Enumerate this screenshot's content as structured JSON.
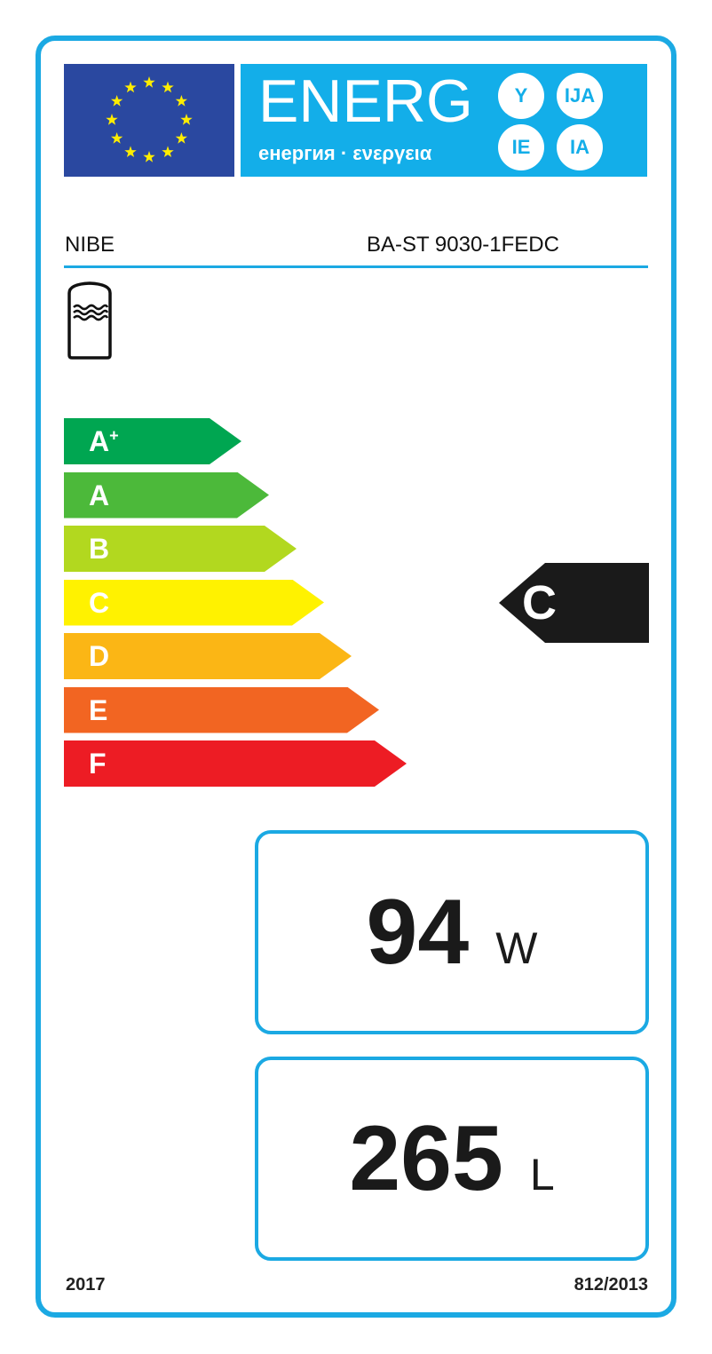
{
  "header": {
    "energy_title": "ENERG",
    "languages": "енергия · ενεργεια",
    "suffixes": [
      "Y",
      "IJA",
      "IE",
      "IA"
    ]
  },
  "supplier": "NIBE",
  "model": "BA-ST 9030-1FEDC",
  "product_icon": "water-tank-icon",
  "scale": [
    {
      "label": "A",
      "sup": "+",
      "color": "#00a651"
    },
    {
      "label": "A",
      "sup": "",
      "color": "#4cb93a"
    },
    {
      "label": "B",
      "sup": "",
      "color": "#b2d81f"
    },
    {
      "label": "C",
      "sup": "",
      "color": "#fff200"
    },
    {
      "label": "D",
      "sup": "",
      "color": "#fbb615"
    },
    {
      "label": "E",
      "sup": "",
      "color": "#f26522"
    },
    {
      "label": "F",
      "sup": "",
      "color": "#ed1c24"
    }
  ],
  "rating": "C",
  "standing_loss": {
    "value": "94",
    "unit": "W"
  },
  "volume": {
    "value": "265",
    "unit": "L"
  },
  "footer": {
    "year": "2017",
    "regulation": "812/2013"
  }
}
